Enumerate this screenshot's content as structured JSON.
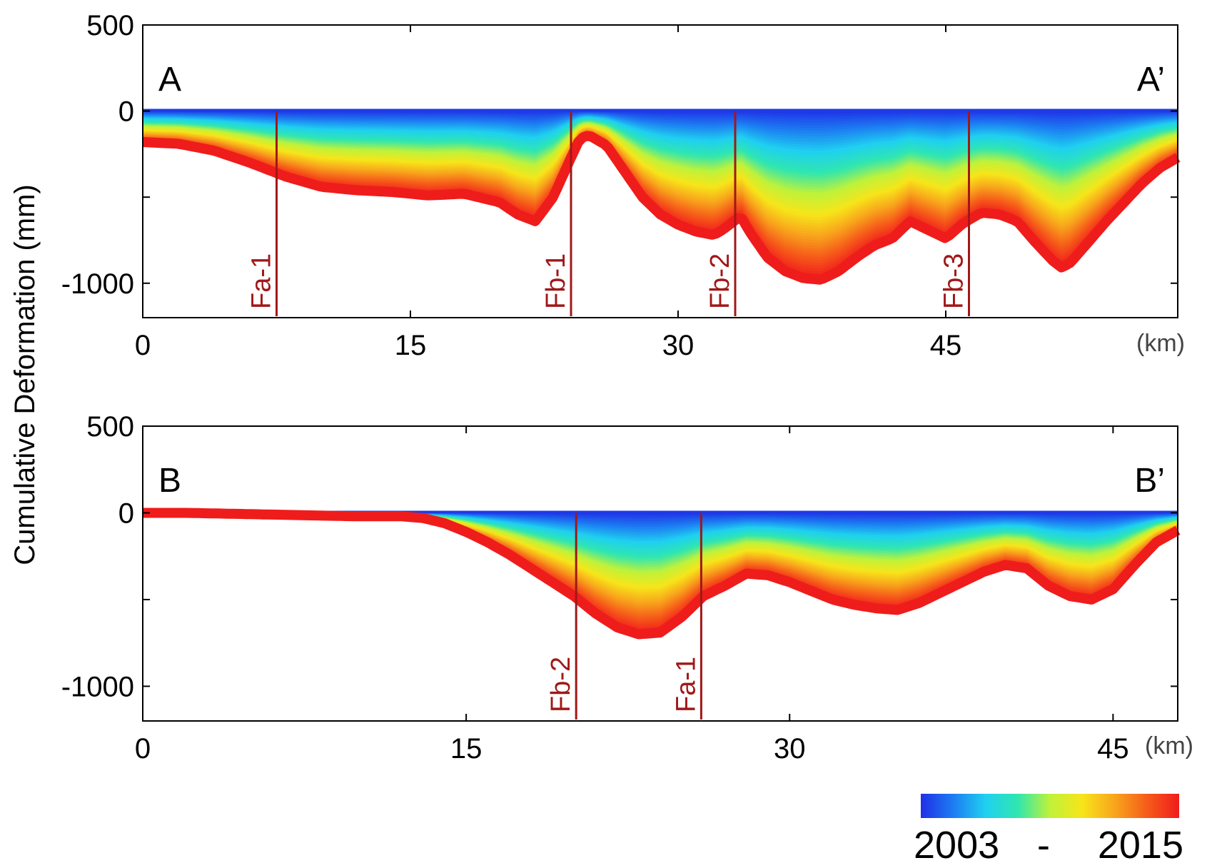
{
  "chart_data": {
    "type": "area",
    "ylabel": "Cumulative Deformation (mm)",
    "x_unit": "(km)",
    "colorbar": {
      "start_label": "2003",
      "separator": "-",
      "end_label": "2015",
      "colors": [
        "#1f2fe6",
        "#1d7cf2",
        "#1fd0f0",
        "#2fe6b0",
        "#bff23a",
        "#f7e51a",
        "#f8a51c",
        "#f65c1a",
        "#ef1c1c"
      ]
    },
    "panels": [
      {
        "id": "A",
        "left_label": "A",
        "right_label": "A’",
        "xlim": [
          0,
          58
        ],
        "ylim": [
          -1200,
          500
        ],
        "xticks": [
          {
            "value": 0,
            "label": "0"
          },
          {
            "value": 15,
            "label": "15"
          },
          {
            "value": 30,
            "label": "30"
          },
          {
            "value": 45,
            "label": "45"
          }
        ],
        "yticks": [
          {
            "value": 500,
            "label": "500"
          },
          {
            "value": 0,
            "label": "0"
          },
          {
            "value": -1000,
            "label": "-1000"
          }
        ],
        "faults": [
          {
            "name": "Fa-1",
            "x": 7.5
          },
          {
            "name": "Fb-1",
            "x": 24.0
          },
          {
            "name": "Fb-2",
            "x": 33.2
          },
          {
            "name": "Fb-3",
            "x": 46.3
          }
        ],
        "final_profile": {
          "x": [
            0,
            2,
            4,
            6,
            8,
            10,
            12,
            14,
            16,
            18,
            20,
            21,
            22,
            23,
            24,
            24.5,
            25,
            26,
            27,
            28,
            29,
            30,
            31,
            32,
            32.5,
            33,
            33.5,
            34,
            35,
            36,
            37,
            38,
            39,
            40,
            41,
            42,
            43,
            44,
            45,
            46,
            47,
            48,
            49,
            50,
            51,
            51.5,
            52,
            53,
            54,
            55,
            56,
            57,
            58
          ],
          "y": [
            -180,
            -190,
            -230,
            -300,
            -380,
            -440,
            -460,
            -470,
            -490,
            -480,
            -530,
            -600,
            -640,
            -500,
            -270,
            -160,
            -140,
            -200,
            -350,
            -500,
            -600,
            -660,
            -700,
            -720,
            -690,
            -650,
            -610,
            -700,
            -850,
            -930,
            -970,
            -980,
            -930,
            -850,
            -780,
            -740,
            -640,
            -690,
            -740,
            -650,
            -590,
            -600,
            -640,
            -760,
            -870,
            -910,
            -880,
            -760,
            -640,
            -530,
            -420,
            -330,
            -270
          ]
        }
      },
      {
        "id": "B",
        "left_label": "B",
        "right_label": "B’",
        "xlim": [
          0,
          48
        ],
        "ylim": [
          -1200,
          500
        ],
        "xticks": [
          {
            "value": 0,
            "label": "0"
          },
          {
            "value": 15,
            "label": "15"
          },
          {
            "value": 30,
            "label": "30"
          },
          {
            "value": 45,
            "label": "45"
          }
        ],
        "yticks": [
          {
            "value": 500,
            "label": "500"
          },
          {
            "value": 0,
            "label": "0"
          },
          {
            "value": -1000,
            "label": "-1000"
          }
        ],
        "faults": [
          {
            "name": "Fb-2",
            "x": 20.1
          },
          {
            "name": "Fa-1",
            "x": 25.9
          }
        ],
        "final_profile": {
          "x": [
            0,
            2,
            4,
            6,
            8,
            10,
            12,
            13,
            14,
            15,
            16,
            17,
            18,
            19,
            20,
            21,
            22,
            23,
            24,
            25,
            26,
            27,
            28,
            29,
            30,
            31,
            32,
            33,
            34,
            35,
            36,
            37,
            38,
            39,
            40,
            41,
            42,
            43,
            44,
            45,
            46,
            47,
            48
          ],
          "y": [
            0,
            0,
            -5,
            -10,
            -15,
            -20,
            -20,
            -30,
            -60,
            -110,
            -170,
            -240,
            -320,
            -400,
            -480,
            -580,
            -660,
            -700,
            -690,
            -600,
            -480,
            -420,
            -350,
            -360,
            -400,
            -450,
            -500,
            -530,
            -550,
            -560,
            -520,
            -460,
            -400,
            -340,
            -300,
            -320,
            -420,
            -480,
            -500,
            -440,
            -300,
            -170,
            -100
          ]
        }
      }
    ]
  }
}
